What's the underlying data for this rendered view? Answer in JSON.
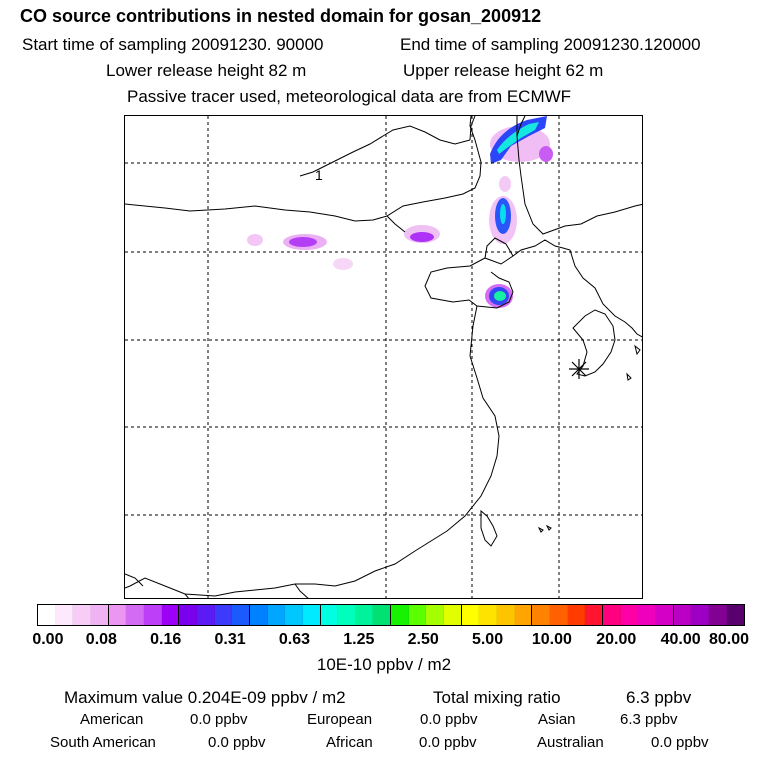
{
  "header": {
    "title": "CO  source contributions in nested domain for gosan_200912",
    "start_time": "Start time of sampling 20091230. 90000",
    "end_time": "End time of sampling 20091230.120000",
    "lower_release": "Lower release height   82 m",
    "upper_release": "Upper release height   62 m",
    "tracer_note": "Passive tracer used, meteorological data are from ECMWF"
  },
  "map": {
    "contour_label": "1",
    "station_marker": "asterisk-icon"
  },
  "colorbar": {
    "colors": [
      "#ffffff",
      "#fde8fd",
      "#f7cdf8",
      "#f1b2f4",
      "#eb96f1",
      "#d46bf5",
      "#bd40f8",
      "#9d00f6",
      "#7a00ee",
      "#5a1bf5",
      "#3c3bfb",
      "#1b5bfd",
      "#0081ff",
      "#00a6ff",
      "#00c8ff",
      "#00eaff",
      "#00ffe2",
      "#00ffbd",
      "#00f39a",
      "#00e174",
      "#17f200",
      "#5cff00",
      "#a5ff00",
      "#e2ff00",
      "#ffff00",
      "#ffe300",
      "#ffc400",
      "#ffa400",
      "#ff8300",
      "#ff6000",
      "#ff3b00",
      "#ff1530",
      "#ff007f",
      "#ff00a6",
      "#ee00bd",
      "#d500c5",
      "#ba00c5",
      "#9d00c4",
      "#820092",
      "#5a006e"
    ],
    "tick_labels": [
      "0.00",
      "0.08",
      "0.16",
      "0.31",
      "0.63",
      "1.25",
      "2.50",
      "5.00",
      "10.00",
      "20.00",
      "40.00",
      "80.00"
    ],
    "unit": "10E-10 ppbv / m2"
  },
  "stats": {
    "max_value": "Maximum value  0.204E-09 ppbv / m2",
    "total_mixing": "Total mixing ratio",
    "total_mixing_value": "6.3 ppbv",
    "american_label": "American",
    "american_value": "0.0 ppbv",
    "european_label": "European",
    "european_value": "0.0 ppbv",
    "asian_label": "Asian",
    "asian_value": "6.3 ppbv",
    "south_american_label": "South American",
    "south_american_value": "0.0 ppbv",
    "african_label": "African",
    "african_value": "0.0 ppbv",
    "australian_label": "Australian",
    "australian_value": "0.0 ppbv"
  }
}
